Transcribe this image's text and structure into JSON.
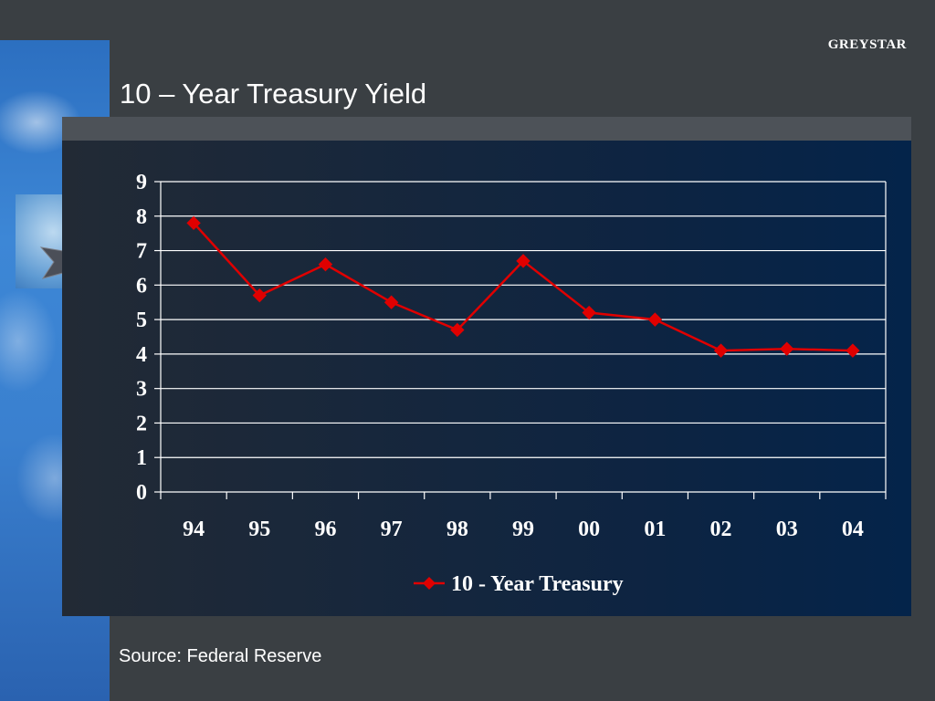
{
  "slide": {
    "brand": "GREYSTAR",
    "title": "10 – Year Treasury Yield",
    "source": "Source: Federal Reserve"
  },
  "colors": {
    "background": "#3a3f43",
    "series_line": "#e00000",
    "gridline": "#ffffff",
    "text": "#ffffff"
  },
  "chart_data": {
    "type": "line",
    "categories": [
      "94",
      "95",
      "96",
      "97",
      "98",
      "99",
      "00",
      "01",
      "02",
      "03",
      "04"
    ],
    "series": [
      {
        "name": "10 - Year Treasury",
        "values": [
          7.8,
          5.7,
          6.6,
          5.5,
          4.7,
          6.7,
          5.2,
          5.0,
          4.1,
          4.15,
          4.1
        ]
      }
    ],
    "ylim": [
      0,
      9
    ],
    "yticks": [
      "0",
      "1",
      "2",
      "3",
      "4",
      "5",
      "6",
      "7",
      "8",
      "9"
    ],
    "grid": true,
    "legend": "bottom",
    "marker": "diamond"
  }
}
